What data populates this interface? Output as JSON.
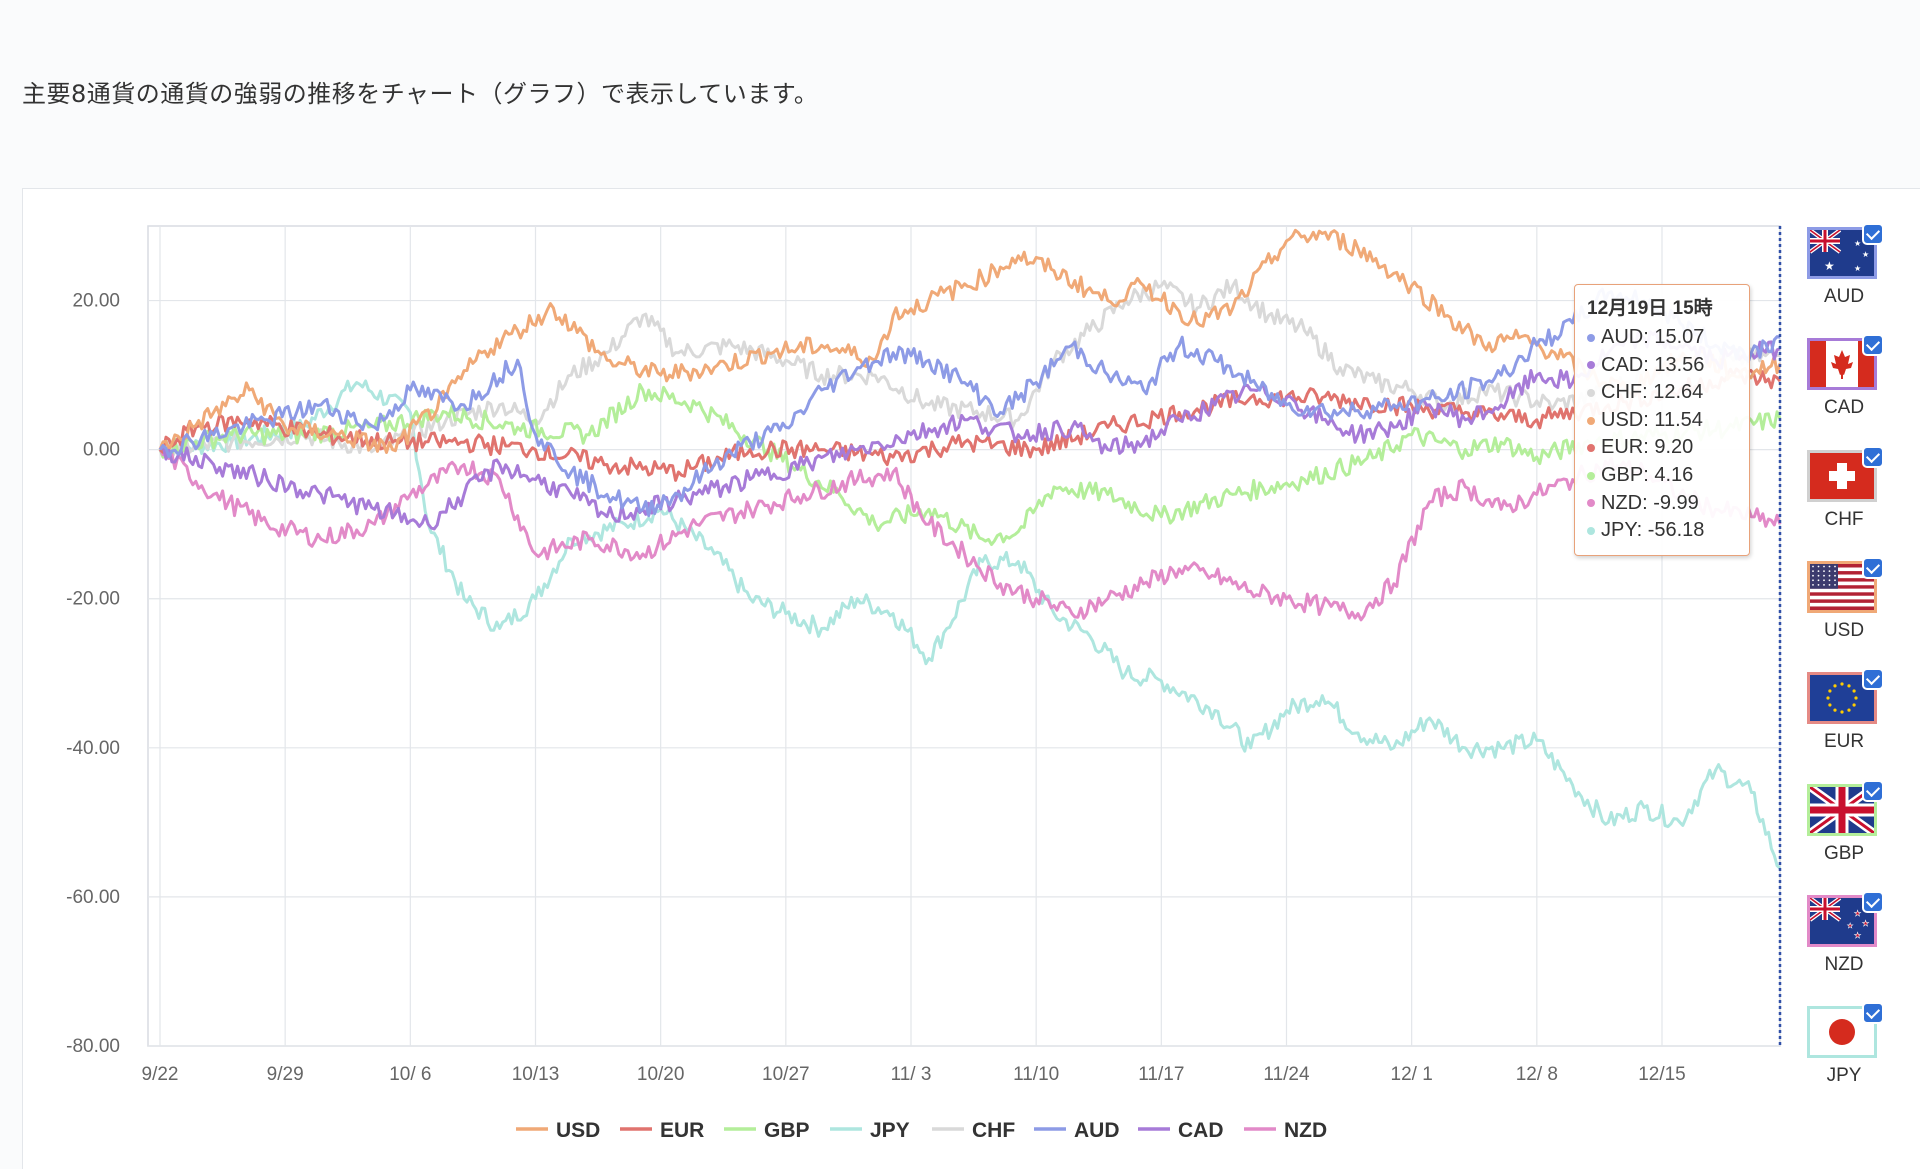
{
  "intro_text": "主要8通貨の通貨の強弱の推移をチャート（グラフ）で表示しています。",
  "tooltip": {
    "title": "12月19日 15時",
    "rows": [
      {
        "currency": "AUD",
        "value": "15.07"
      },
      {
        "currency": "CAD",
        "value": "13.56"
      },
      {
        "currency": "CHF",
        "value": "12.64"
      },
      {
        "currency": "USD",
        "value": "11.54"
      },
      {
        "currency": "EUR",
        "value": "9.20"
      },
      {
        "currency": "GBP",
        "value": "4.16"
      },
      {
        "currency": "NZD",
        "value": "-9.99"
      },
      {
        "currency": "JPY",
        "value": "-56.18"
      }
    ]
  },
  "flags": [
    {
      "code": "AUD",
      "checked": true,
      "border_color": "#8d9be6"
    },
    {
      "code": "CAD",
      "checked": true,
      "border_color": "#a77bd8"
    },
    {
      "code": "CHF",
      "checked": true,
      "border_color": "#d0d0d0"
    },
    {
      "code": "USD",
      "checked": true,
      "border_color": "#f0a977"
    },
    {
      "code": "EUR",
      "checked": true,
      "border_color": "#e58a85"
    },
    {
      "code": "GBP",
      "checked": true,
      "border_color": "#b4ee9a"
    },
    {
      "code": "NZD",
      "checked": true,
      "border_color": "#e28ac8"
    },
    {
      "code": "JPY",
      "checked": true,
      "border_color": "#aee6df"
    }
  ],
  "chart_data": {
    "type": "line",
    "title": "",
    "xlabel": "",
    "ylabel": "",
    "ylim": [
      -80,
      30
    ],
    "y_ticks": [
      "20.00",
      "0.00",
      "-20.00",
      "-40.00",
      "-60.00",
      "-80.00"
    ],
    "y_tick_values": [
      20,
      0,
      -20,
      -40,
      -60,
      -80
    ],
    "x_ticks": [
      "9/22",
      "9/29",
      "10/ 6",
      "10/13",
      "10/20",
      "10/27",
      "11/ 3",
      "11/10",
      "11/17",
      "11/24",
      "12/ 1",
      "12/ 8",
      "12/15"
    ],
    "x_tick_days": [
      0,
      7,
      14,
      21,
      28,
      35,
      42,
      49,
      56,
      63,
      70,
      77,
      84
    ],
    "xlim": [
      0,
      90.6
    ],
    "grid": true,
    "legend_position": "bottom",
    "colors": {
      "USD": "#f0a977",
      "EUR": "#e0736e",
      "GBP": "#b4ee9a",
      "JPY": "#aee6df",
      "CHF": "#d9d9d9",
      "AUD": "#8d9be6",
      "CAD": "#a77bd8",
      "NZD": "#e28ac8"
    },
    "series": [
      {
        "name": "USD",
        "x": [
          0,
          3,
          5,
          7,
          10,
          13,
          16,
          18,
          20,
          22,
          25,
          28,
          31,
          34,
          37,
          40,
          41,
          43,
          46,
          48,
          50,
          53,
          55,
          58,
          60,
          61,
          63,
          65,
          67,
          70,
          72,
          74,
          76,
          78,
          80,
          82,
          84,
          86,
          88,
          90.6
        ],
        "y": [
          0,
          5,
          8,
          3,
          2,
          0,
          7,
          13,
          16,
          19,
          12,
          10,
          11,
          13,
          14,
          12,
          18,
          20,
          23,
          26,
          24,
          20,
          22,
          17,
          19,
          22,
          28,
          29,
          27,
          22,
          18,
          14,
          15,
          13,
          10,
          8,
          11,
          13,
          10,
          11.54
        ]
      },
      {
        "name": "EUR",
        "x": [
          0,
          2,
          5,
          9,
          13,
          17,
          21,
          25,
          29,
          33,
          37,
          41,
          45,
          49,
          53,
          57,
          61,
          65,
          69,
          73,
          77,
          81,
          85,
          88,
          90.6
        ],
        "y": [
          0,
          3,
          4,
          2,
          1,
          1,
          0,
          -2,
          -3,
          0,
          0,
          -1,
          1,
          0,
          3,
          5,
          7,
          7,
          6,
          5,
          4,
          6,
          8,
          10,
          9.2
        ]
      },
      {
        "name": "GBP",
        "x": [
          0,
          4,
          8,
          12,
          16,
          20,
          24,
          27,
          30,
          34,
          38,
          40,
          43,
          46,
          48,
          50,
          53,
          56,
          60,
          64,
          68,
          70,
          73,
          75,
          77,
          80,
          84,
          88,
          90.6
        ],
        "y": [
          0,
          2,
          2,
          3,
          5,
          3,
          2,
          8,
          6,
          0,
          -6,
          -10,
          -8,
          -12,
          -11,
          -5,
          -6,
          -9,
          -6,
          -4,
          -1,
          2,
          0,
          1,
          -1,
          1,
          2,
          3,
          4.16
        ]
      },
      {
        "name": "JPY",
        "x": [
          0,
          4,
          8,
          11,
          14,
          15,
          17,
          19,
          21,
          23,
          26,
          28,
          31,
          33,
          35,
          37,
          39,
          41,
          43,
          44,
          46,
          48,
          50,
          52,
          54,
          56,
          59,
          61,
          63,
          65,
          67,
          69,
          71,
          73,
          75,
          77,
          79,
          81,
          83,
          85,
          87,
          89,
          90.6
        ],
        "y": [
          0,
          1,
          3,
          9,
          5,
          -10,
          -20,
          -24,
          -20,
          -12,
          -10,
          -8,
          -14,
          -20,
          -22,
          -24,
          -20,
          -22,
          -28,
          -24,
          -15,
          -15,
          -22,
          -25,
          -30,
          -31,
          -35,
          -40,
          -35,
          -33,
          -38,
          -40,
          -36,
          -40,
          -40,
          -39,
          -45,
          -50,
          -48,
          -50,
          -43,
          -46,
          -56.18
        ]
      },
      {
        "name": "CHF",
        "x": [
          0,
          4,
          8,
          12,
          16,
          19,
          21,
          23,
          25,
          27,
          29,
          32,
          35,
          37,
          40,
          43,
          46,
          48,
          50,
          52,
          54,
          56,
          58,
          60,
          62,
          64,
          66,
          68,
          70,
          72,
          74,
          76,
          78,
          80,
          82,
          84,
          86,
          88,
          90.6
        ],
        "y": [
          0,
          1,
          2,
          0,
          4,
          6,
          4,
          10,
          13,
          18,
          13,
          14,
          12,
          10,
          10,
          6,
          5,
          4,
          12,
          16,
          20,
          22,
          19,
          22,
          18,
          16,
          11,
          9,
          8,
          6,
          8,
          7,
          6,
          7,
          9,
          11,
          12,
          12,
          12.64
        ]
      },
      {
        "name": "AUD",
        "x": [
          0,
          3,
          6,
          9,
          12,
          14,
          17,
          20,
          21,
          23,
          25,
          27,
          29,
          31,
          33,
          35,
          37,
          39,
          41,
          43,
          45,
          47,
          49,
          51,
          53,
          55,
          57,
          59,
          61,
          63,
          66,
          69,
          72,
          75,
          77,
          79,
          81,
          83,
          85,
          87,
          89,
          90.6
        ],
        "y": [
          0,
          2,
          4,
          6,
          3,
          8,
          6,
          12,
          2,
          -3,
          -6,
          -8,
          -6,
          -2,
          1,
          3,
          8,
          11,
          13,
          12,
          9,
          5,
          9,
          14,
          10,
          8,
          14,
          12,
          9,
          6,
          5,
          6,
          7,
          10,
          14,
          17,
          21,
          20,
          17,
          14,
          13,
          15.07
        ]
      },
      {
        "name": "CAD",
        "x": [
          0,
          3,
          6,
          9,
          12,
          15,
          17,
          19,
          21,
          23,
          25,
          27,
          30,
          33,
          36,
          39,
          42,
          45,
          48,
          51,
          53,
          55,
          57,
          59,
          61,
          63,
          65,
          67,
          69,
          71,
          73,
          75,
          77,
          79,
          81,
          83,
          85,
          87,
          89,
          90.6
        ],
        "y": [
          0,
          -2,
          -4,
          -6,
          -8,
          -10,
          -6,
          -2,
          -4,
          -6,
          -9,
          -8,
          -6,
          -4,
          -2,
          0,
          2,
          4,
          2,
          3,
          0,
          1,
          4,
          6,
          8,
          7,
          4,
          2,
          3,
          6,
          4,
          6,
          10,
          9,
          13,
          15,
          14,
          12,
          13,
          13.56
        ]
      },
      {
        "name": "NZD",
        "x": [
          0,
          3,
          6,
          9,
          12,
          14,
          17,
          19,
          21,
          24,
          27,
          30,
          33,
          36,
          39,
          41,
          43,
          45,
          47,
          49,
          51,
          53,
          55,
          57,
          59,
          61,
          63,
          65,
          67,
          69,
          71,
          73,
          75,
          77,
          79,
          81,
          83,
          85,
          87,
          89,
          90.6
        ],
        "y": [
          0,
          -6,
          -10,
          -12,
          -10,
          -6,
          -2,
          -4,
          -14,
          -12,
          -14,
          -10,
          -8,
          -6,
          -4,
          -3,
          -10,
          -14,
          -18,
          -20,
          -22,
          -20,
          -18,
          -16,
          -17,
          -19,
          -20,
          -21,
          -22,
          -18,
          -7,
          -5,
          -8,
          -6,
          -4,
          -2,
          -3,
          -6,
          -8,
          -9,
          -9.99
        ]
      }
    ],
    "legend": [
      "USD",
      "EUR",
      "GBP",
      "JPY",
      "CHF",
      "AUD",
      "CAD",
      "NZD"
    ]
  }
}
